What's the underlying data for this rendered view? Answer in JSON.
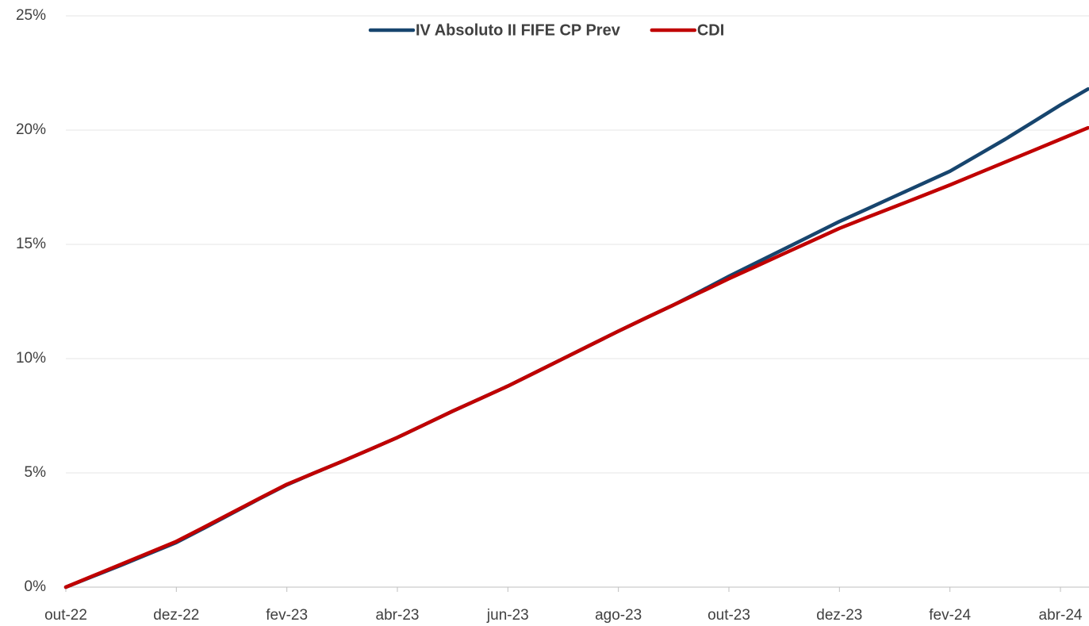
{
  "chart_data": {
    "type": "line",
    "categories": [
      "out-22",
      null,
      null,
      null,
      "dez-22",
      null,
      null,
      null,
      "fev-23",
      null,
      null,
      null,
      "abr-23",
      null,
      null,
      null,
      "jun-23",
      null,
      null,
      null,
      "ago-23",
      null,
      null,
      null,
      "out-23",
      null,
      null,
      null,
      "dez-23",
      null,
      null,
      null,
      "fev-24",
      null,
      null,
      null,
      "abr-24",
      null
    ],
    "series": [
      {
        "name": "IV Absoluto II FIFE CP Prev",
        "color": "#17456e",
        "values": [
          0,
          0.48,
          0.96,
          1.46,
          1.95,
          2.58,
          3.22,
          3.86,
          4.48,
          5.0,
          5.5,
          6.02,
          6.55,
          7.12,
          7.7,
          8.25,
          8.8,
          9.4,
          10.0,
          10.6,
          11.2,
          11.78,
          12.35,
          12.97,
          13.6,
          14.2,
          14.8,
          15.4,
          16.0,
          16.55,
          17.1,
          17.65,
          18.2,
          18.9,
          19.6,
          20.35,
          21.1,
          21.8
        ]
      },
      {
        "name": "CDI",
        "color": "#c00000",
        "values": [
          0,
          0.5,
          1.0,
          1.5,
          2.0,
          2.62,
          3.25,
          3.88,
          4.5,
          5.0,
          5.5,
          6.02,
          6.55,
          7.12,
          7.7,
          8.25,
          8.8,
          9.4,
          10.0,
          10.6,
          11.2,
          11.78,
          12.35,
          12.92,
          13.5,
          14.05,
          14.6,
          15.15,
          15.7,
          16.18,
          16.65,
          17.12,
          17.6,
          18.1,
          18.6,
          19.1,
          19.6,
          20.1
        ]
      }
    ],
    "ylim": [
      0,
      25
    ],
    "yticks": [
      {
        "value": 0,
        "label": "0%"
      },
      {
        "value": 5,
        "label": "5%"
      },
      {
        "value": 10,
        "label": "10%"
      },
      {
        "value": 15,
        "label": "15%"
      },
      {
        "value": 20,
        "label": "20%"
      },
      {
        "value": 25,
        "label": "25%"
      }
    ],
    "grid": true,
    "legend": "top"
  }
}
